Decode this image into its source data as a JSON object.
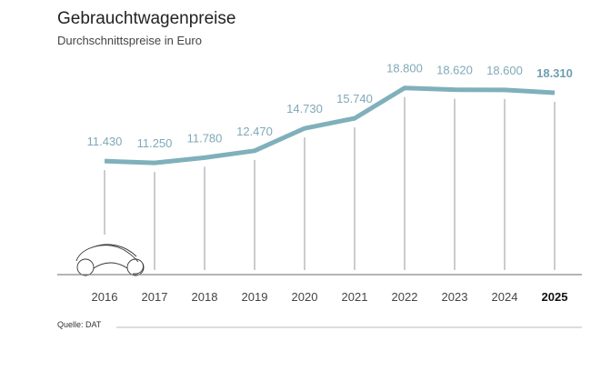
{
  "chart_data": {
    "type": "line",
    "title": "Gebrauchtwagenpreise",
    "subtitle": "Durchschnittspreise in Euro",
    "source": "Quelle: DAT",
    "categories": [
      "2016",
      "2017",
      "2018",
      "2019",
      "2020",
      "2021",
      "2022",
      "2023",
      "2024",
      "2025"
    ],
    "values": [
      11430,
      11250,
      11780,
      12470,
      14730,
      15740,
      18800,
      18620,
      18600,
      18310
    ],
    "labels": [
      "11.430",
      "11.250",
      "11.780",
      "12.470",
      "14.730",
      "15.740",
      "18.800",
      "18.620",
      "18.600",
      "18.310"
    ],
    "highlight_index": 9,
    "ylim": [
      0,
      19000
    ],
    "grid": false,
    "colors": {
      "line": "#7fb0bb",
      "label": "#7fa9b8",
      "highlight_label": "#6e9fb0",
      "axis": "#888888",
      "dropline": "#999999"
    }
  }
}
